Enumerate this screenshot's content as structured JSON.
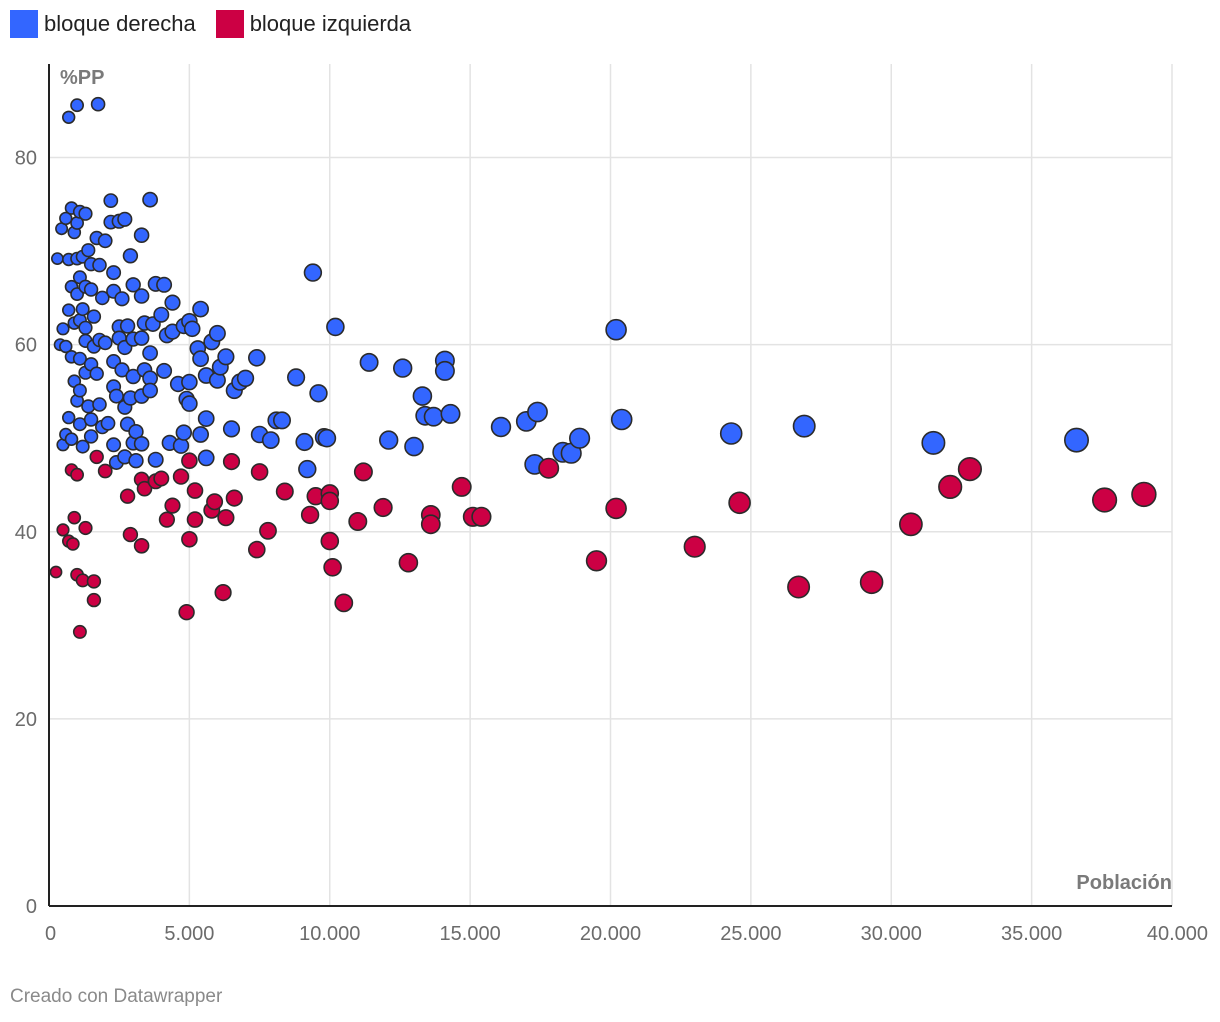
{
  "legend": [
    {
      "label": "bloque derecha",
      "color": "#3366ff"
    },
    {
      "label": "bloque izquierda",
      "color": "#cc0044"
    }
  ],
  "footer": "Creado con Datawrapper",
  "chart_data": {
    "type": "scatter",
    "xlabel": "Población",
    "ylabel": "%PP",
    "xlim": [
      0,
      40000
    ],
    "ylim": [
      0,
      90
    ],
    "x_ticks": [
      0,
      5000,
      10000,
      15000,
      20000,
      25000,
      30000,
      35000,
      40000
    ],
    "x_tick_labels": [
      "0",
      "5.000",
      "10.000",
      "15.000",
      "20.000",
      "25.000",
      "30.000",
      "35.000",
      "40.000"
    ],
    "y_ticks": [
      0,
      20,
      40,
      60,
      80
    ],
    "y_tick_labels": [
      "0",
      "20",
      "40",
      "60",
      "80"
    ],
    "grid": true,
    "legend_position": "top-left",
    "series": [
      {
        "name": "bloque derecha",
        "color": "#3366ff",
        "points": [
          [
            700,
            84.3
          ],
          [
            1000,
            85.6
          ],
          [
            1750,
            85.7
          ],
          [
            300,
            69.2
          ],
          [
            450,
            72.4
          ],
          [
            600,
            73.5
          ],
          [
            800,
            74.6
          ],
          [
            900,
            72.0
          ],
          [
            1000,
            73.0
          ],
          [
            1100,
            74.2
          ],
          [
            1300,
            74.0
          ],
          [
            700,
            69.1
          ],
          [
            1000,
            69.2
          ],
          [
            1200,
            69.4
          ],
          [
            1400,
            70.1
          ],
          [
            1700,
            71.4
          ],
          [
            2000,
            71.1
          ],
          [
            2200,
            73.1
          ],
          [
            2500,
            73.2
          ],
          [
            2700,
            73.4
          ],
          [
            2200,
            75.4
          ],
          [
            3600,
            75.5
          ],
          [
            3300,
            71.7
          ],
          [
            1500,
            68.6
          ],
          [
            1800,
            68.5
          ],
          [
            2300,
            67.7
          ],
          [
            1100,
            67.2
          ],
          [
            2900,
            69.5
          ],
          [
            800,
            66.2
          ],
          [
            1000,
            65.4
          ],
          [
            1300,
            66.2
          ],
          [
            1500,
            65.9
          ],
          [
            1900,
            65.0
          ],
          [
            2300,
            65.7
          ],
          [
            2600,
            64.9
          ],
          [
            3000,
            66.4
          ],
          [
            3300,
            65.2
          ],
          [
            3800,
            66.5
          ],
          [
            4100,
            66.4
          ],
          [
            4400,
            64.5
          ],
          [
            500,
            61.7
          ],
          [
            700,
            63.7
          ],
          [
            900,
            62.3
          ],
          [
            1100,
            62.6
          ],
          [
            1300,
            61.8
          ],
          [
            1600,
            63.0
          ],
          [
            2500,
            61.9
          ],
          [
            2800,
            62.0
          ],
          [
            3400,
            62.3
          ],
          [
            3700,
            62.2
          ],
          [
            4000,
            63.2
          ],
          [
            4400,
            61.4
          ],
          [
            4800,
            62.0
          ],
          [
            5000,
            62.5
          ],
          [
            5100,
            61.7
          ],
          [
            5400,
            63.8
          ],
          [
            1200,
            63.8
          ],
          [
            600,
            59.8
          ],
          [
            400,
            60.0
          ],
          [
            800,
            58.7
          ],
          [
            1100,
            58.5
          ],
          [
            1300,
            60.4
          ],
          [
            1600,
            59.8
          ],
          [
            1800,
            60.5
          ],
          [
            2000,
            60.2
          ],
          [
            2300,
            58.2
          ],
          [
            2500,
            60.7
          ],
          [
            2700,
            59.7
          ],
          [
            3000,
            60.6
          ],
          [
            3300,
            60.7
          ],
          [
            3600,
            59.1
          ],
          [
            4200,
            61.0
          ],
          [
            5300,
            59.6
          ],
          [
            5800,
            60.3
          ],
          [
            6000,
            61.2
          ],
          [
            5400,
            58.5
          ],
          [
            6300,
            58.7
          ],
          [
            7400,
            58.6
          ],
          [
            900,
            56.1
          ],
          [
            1100,
            55.1
          ],
          [
            1300,
            57.0
          ],
          [
            1500,
            57.9
          ],
          [
            1700,
            56.9
          ],
          [
            2300,
            55.5
          ],
          [
            2600,
            57.3
          ],
          [
            3000,
            56.6
          ],
          [
            3400,
            57.3
          ],
          [
            3600,
            56.4
          ],
          [
            4100,
            57.2
          ],
          [
            4600,
            55.8
          ],
          [
            5000,
            56.0
          ],
          [
            5600,
            56.7
          ],
          [
            6000,
            56.2
          ],
          [
            6100,
            57.6
          ],
          [
            6800,
            56.0
          ],
          [
            7000,
            56.4
          ],
          [
            8800,
            56.5
          ],
          [
            1000,
            54.0
          ],
          [
            1400,
            53.4
          ],
          [
            1800,
            53.6
          ],
          [
            2400,
            54.5
          ],
          [
            2700,
            53.3
          ],
          [
            2900,
            54.3
          ],
          [
            3300,
            54.5
          ],
          [
            3600,
            55.1
          ],
          [
            4900,
            54.2
          ],
          [
            5000,
            53.7
          ],
          [
            5600,
            52.1
          ],
          [
            6600,
            55.1
          ],
          [
            9600,
            54.8
          ],
          [
            1100,
            51.5
          ],
          [
            1500,
            52.0
          ],
          [
            1900,
            51.2
          ],
          [
            2100,
            51.6
          ],
          [
            2800,
            51.5
          ],
          [
            3100,
            50.7
          ],
          [
            4800,
            50.6
          ],
          [
            5400,
            50.4
          ],
          [
            6500,
            51.0
          ],
          [
            7500,
            50.4
          ],
          [
            8100,
            51.9
          ],
          [
            8300,
            51.9
          ],
          [
            700,
            52.2
          ],
          [
            600,
            50.4
          ],
          [
            800,
            49.9
          ],
          [
            1200,
            49.1
          ],
          [
            1500,
            50.2
          ],
          [
            2300,
            49.3
          ],
          [
            3000,
            49.5
          ],
          [
            3300,
            49.4
          ],
          [
            4300,
            49.5
          ],
          [
            4700,
            49.2
          ],
          [
            3800,
            47.7
          ],
          [
            2700,
            48.0
          ],
          [
            3100,
            47.6
          ],
          [
            2400,
            47.4
          ],
          [
            5600,
            47.9
          ],
          [
            7900,
            49.8
          ],
          [
            9100,
            49.6
          ],
          [
            9800,
            50.1
          ],
          [
            9900,
            50.0
          ],
          [
            9200,
            46.7
          ],
          [
            500,
            49.3
          ],
          [
            9400,
            67.7
          ],
          [
            10200,
            61.9
          ],
          [
            11400,
            58.1
          ],
          [
            12600,
            57.5
          ],
          [
            13300,
            54.5
          ],
          [
            13400,
            52.4
          ],
          [
            13700,
            52.3
          ],
          [
            14100,
            58.3
          ],
          [
            14100,
            57.2
          ],
          [
            14300,
            52.6
          ],
          [
            12100,
            49.8
          ],
          [
            13000,
            49.1
          ],
          [
            16100,
            51.2
          ],
          [
            17000,
            51.8
          ],
          [
            17400,
            52.8
          ],
          [
            17300,
            47.2
          ],
          [
            18300,
            48.5
          ],
          [
            18600,
            48.4
          ],
          [
            18900,
            50.0
          ],
          [
            20200,
            61.6
          ],
          [
            20400,
            52.0
          ],
          [
            24300,
            50.5
          ],
          [
            26900,
            51.3
          ],
          [
            31500,
            49.5
          ],
          [
            36600,
            49.8
          ]
        ]
      },
      {
        "name": "bloque izquierda",
        "color": "#cc0044",
        "points": [
          [
            250,
            35.7
          ],
          [
            500,
            40.2
          ],
          [
            700,
            39.0
          ],
          [
            850,
            38.7
          ],
          [
            900,
            41.5
          ],
          [
            800,
            46.6
          ],
          [
            1000,
            46.1
          ],
          [
            1000,
            35.4
          ],
          [
            1200,
            34.8
          ],
          [
            1600,
            34.7
          ],
          [
            1600,
            32.7
          ],
          [
            1100,
            29.3
          ],
          [
            1300,
            40.4
          ],
          [
            1700,
            48.0
          ],
          [
            2000,
            46.5
          ],
          [
            2800,
            43.8
          ],
          [
            2900,
            39.7
          ],
          [
            3300,
            45.6
          ],
          [
            3400,
            44.6
          ],
          [
            3300,
            38.5
          ],
          [
            3800,
            45.4
          ],
          [
            4000,
            45.7
          ],
          [
            4200,
            41.3
          ],
          [
            4400,
            42.8
          ],
          [
            4700,
            45.9
          ],
          [
            4900,
            31.4
          ],
          [
            5000,
            47.6
          ],
          [
            5000,
            39.2
          ],
          [
            5200,
            44.4
          ],
          [
            5200,
            41.3
          ],
          [
            5900,
            43.2
          ],
          [
            5800,
            42.3
          ],
          [
            6300,
            41.5
          ],
          [
            6200,
            33.5
          ],
          [
            6500,
            47.5
          ],
          [
            6600,
            43.6
          ],
          [
            7400,
            38.1
          ],
          [
            7500,
            46.4
          ],
          [
            7800,
            40.1
          ],
          [
            8400,
            44.3
          ],
          [
            9300,
            41.8
          ],
          [
            9500,
            43.8
          ],
          [
            10000,
            39.0
          ],
          [
            10000,
            44.1
          ],
          [
            10000,
            43.3
          ],
          [
            10100,
            36.2
          ],
          [
            10500,
            32.4
          ],
          [
            11000,
            41.1
          ],
          [
            11200,
            46.4
          ],
          [
            11900,
            42.6
          ],
          [
            12800,
            36.7
          ],
          [
            13600,
            41.8
          ],
          [
            13600,
            40.8
          ],
          [
            14700,
            44.8
          ],
          [
            15100,
            41.6
          ],
          [
            15400,
            41.6
          ],
          [
            17800,
            46.8
          ],
          [
            19500,
            36.9
          ],
          [
            20200,
            42.5
          ],
          [
            23000,
            38.4
          ],
          [
            24600,
            43.1
          ],
          [
            26700,
            34.1
          ],
          [
            29300,
            34.6
          ],
          [
            30700,
            40.8
          ],
          [
            32100,
            44.8
          ],
          [
            32800,
            46.7
          ],
          [
            37600,
            43.4
          ],
          [
            39000,
            44.0
          ]
        ]
      }
    ]
  }
}
